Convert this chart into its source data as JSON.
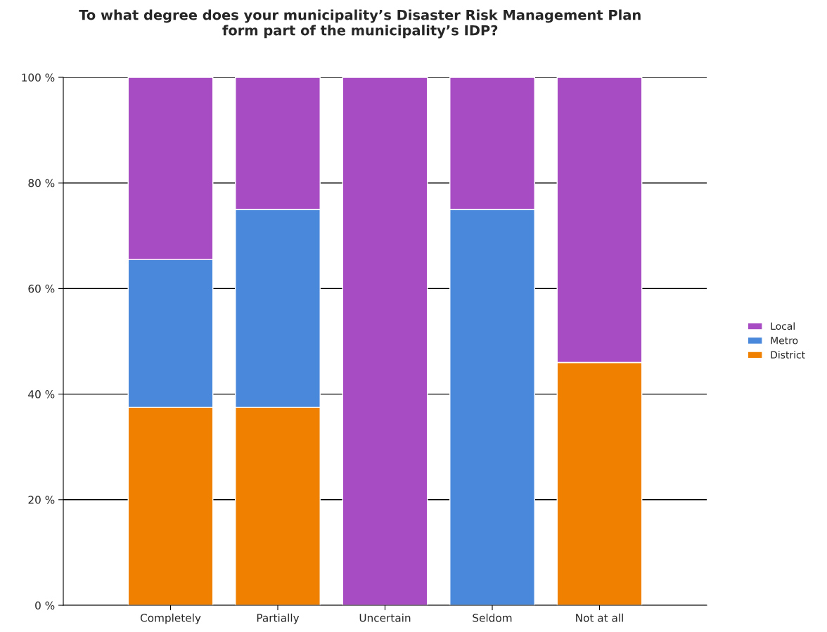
{
  "chart_data": {
    "type": "bar",
    "title": "To what degree does your municipality’s Disaster Risk Management Plan\nform part of the municipality’s IDP?",
    "categories": [
      "Completely",
      "Partially",
      "Uncertain",
      "Seldom",
      "Not at all"
    ],
    "stacked": true,
    "series": [
      {
        "name": "District",
        "color": "#f08000",
        "values": [
          37.5,
          37.5,
          0,
          0,
          46
        ]
      },
      {
        "name": "Metro",
        "color": "#4a88dc",
        "values": [
          28,
          37.5,
          0,
          75,
          0
        ]
      },
      {
        "name": "Local",
        "color": "#a84cc4",
        "values": [
          34.5,
          25,
          100,
          25,
          54
        ]
      }
    ],
    "ylim": [
      0,
      100
    ],
    "yticks": [
      {
        "value": 0,
        "label": "0 %"
      },
      {
        "value": 20,
        "label": "20 %"
      },
      {
        "value": 40,
        "label": "40 %"
      },
      {
        "value": 60,
        "label": "60 %"
      },
      {
        "value": 80,
        "label": "80 %"
      },
      {
        "value": 100,
        "label": "100 %"
      }
    ],
    "grid": "y",
    "legend": "right"
  }
}
